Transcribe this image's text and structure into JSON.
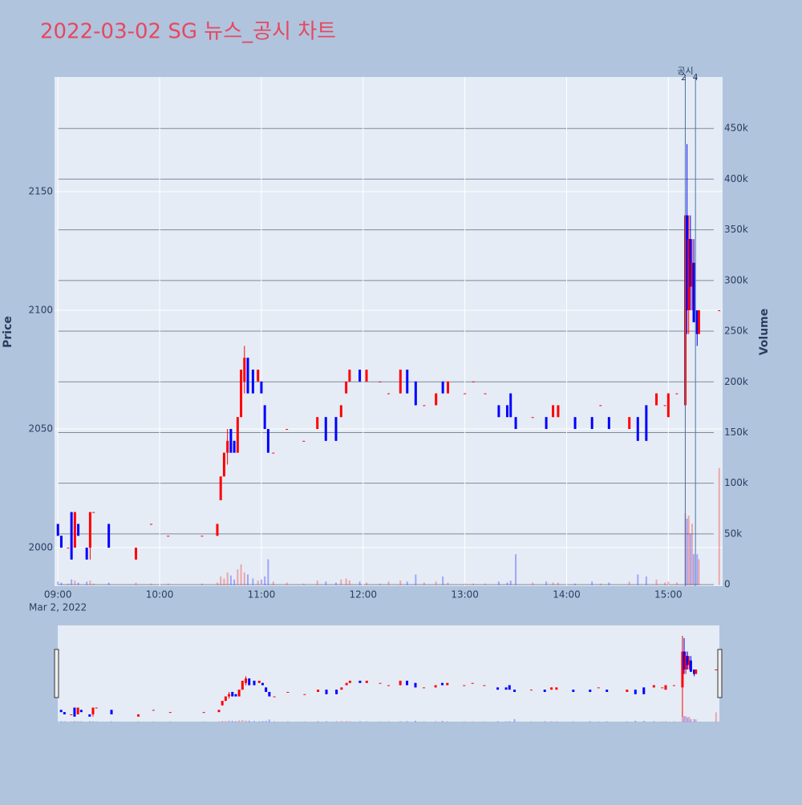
{
  "chart_data": {
    "type": "candlestick",
    "title": "2022-03-02 SG 뉴스_공시 차트",
    "y_label": "Price",
    "y2_label": "Volume",
    "xtick_sublabel": "Mar 2, 2022",
    "up_color": "#ff0000",
    "down_color": "#0000ff",
    "x": [
      "09:00",
      "09:02",
      "09:06",
      "09:08",
      "09:10",
      "09:12",
      "09:17",
      "09:19",
      "09:21",
      "09:30",
      "09:46",
      "09:55",
      "10:05",
      "10:25",
      "10:34",
      "10:36",
      "10:38",
      "10:40",
      "10:42",
      "10:44",
      "10:46",
      "10:48",
      "10:50",
      "10:52",
      "10:55",
      "10:58",
      "11:00",
      "11:02",
      "11:04",
      "11:07",
      "11:15",
      "11:25",
      "11:33",
      "11:38",
      "11:44",
      "11:47",
      "11:50",
      "11:52",
      "11:58",
      "12:02",
      "12:10",
      "12:15",
      "12:22",
      "12:26",
      "12:31",
      "12:36",
      "12:43",
      "12:47",
      "12:50",
      "13:00",
      "13:05",
      "13:12",
      "13:20",
      "13:25",
      "13:27",
      "13:30",
      "13:40",
      "13:48",
      "13:52",
      "13:55",
      "14:05",
      "14:15",
      "14:20",
      "14:25",
      "14:37",
      "14:42",
      "14:47",
      "14:53",
      "14:58",
      "15:00",
      "15:05",
      "15:10",
      "15:11",
      "15:12",
      "15:13",
      "15:14",
      "15:15",
      "15:17",
      "15:18",
      "15:30"
    ],
    "open": [
      2010,
      2005,
      2000,
      2015,
      2000,
      2010,
      2000,
      2000,
      2015,
      2010,
      1995,
      2010,
      2005,
      2005,
      2005,
      2020,
      2030,
      2040,
      2050,
      2045,
      2040,
      2055,
      2070,
      2080,
      2075,
      2070,
      2070,
      2060,
      2050,
      2040,
      2050,
      2045,
      2050,
      2055,
      2055,
      2055,
      2065,
      2070,
      2075,
      2070,
      2070,
      2065,
      2065,
      2075,
      2070,
      2060,
      2060,
      2070,
      2065,
      2065,
      2070,
      2065,
      2060,
      2060,
      2065,
      2055,
      2055,
      2055,
      2055,
      2055,
      2055,
      2055,
      2060,
      2055,
      2050,
      2055,
      2060,
      2060,
      2060,
      2055,
      2065,
      2060,
      2140,
      2100,
      2130,
      2110,
      2120,
      2100,
      2090,
      2100
    ],
    "high": [
      2010,
      2005,
      2000,
      2015,
      2015,
      2010,
      2000,
      2015,
      2015,
      2010,
      2000,
      2010,
      2005,
      2005,
      2010,
      2030,
      2040,
      2050,
      2050,
      2045,
      2055,
      2075,
      2085,
      2080,
      2075,
      2075,
      2070,
      2060,
      2050,
      2040,
      2050,
      2045,
      2055,
      2055,
      2055,
      2060,
      2070,
      2075,
      2075,
      2075,
      2070,
      2065,
      2075,
      2075,
      2070,
      2060,
      2065,
      2070,
      2070,
      2065,
      2070,
      2065,
      2060,
      2060,
      2065,
      2055,
      2055,
      2055,
      2060,
      2060,
      2055,
      2055,
      2060,
      2055,
      2055,
      2055,
      2060,
      2065,
      2060,
      2065,
      2065,
      2175,
      2170,
      2140,
      2140,
      2130,
      2130,
      2100,
      2100,
      2100
    ],
    "low": [
      2005,
      2000,
      2000,
      1995,
      2000,
      2005,
      1995,
      1995,
      2015,
      2000,
      1995,
      2010,
      2005,
      2005,
      2005,
      2020,
      2030,
      2035,
      2040,
      2040,
      2040,
      2055,
      2065,
      2065,
      2065,
      2070,
      2065,
      2050,
      2040,
      2040,
      2050,
      2045,
      2050,
      2045,
      2045,
      2055,
      2065,
      2070,
      2070,
      2070,
      2070,
      2065,
      2065,
      2065,
      2060,
      2060,
      2060,
      2065,
      2065,
      2065,
      2070,
      2065,
      2055,
      2055,
      2055,
      2050,
      2055,
      2050,
      2055,
      2055,
      2050,
      2050,
      2060,
      2050,
      2050,
      2045,
      2045,
      2060,
      2060,
      2055,
      2065,
      1995,
      2090,
      2090,
      2100,
      2100,
      2095,
      2085,
      2090,
      2100
    ],
    "close": [
      2005,
      2000,
      2000,
      1995,
      2015,
      2005,
      1995,
      2015,
      2015,
      2000,
      2000,
      2010,
      2005,
      2005,
      2010,
      2030,
      2040,
      2045,
      2040,
      2040,
      2055,
      2075,
      2080,
      2065,
      2065,
      2075,
      2065,
      2050,
      2040,
      2040,
      2050,
      2045,
      2055,
      2045,
      2045,
      2060,
      2070,
      2075,
      2070,
      2075,
      2070,
      2065,
      2075,
      2065,
      2060,
      2060,
      2065,
      2065,
      2070,
      2065,
      2070,
      2065,
      2055,
      2055,
      2055,
      2050,
      2055,
      2050,
      2060,
      2060,
      2050,
      2050,
      2060,
      2050,
      2055,
      2045,
      2045,
      2065,
      2060,
      2065,
      2065,
      2140,
      2100,
      2130,
      2110,
      2120,
      2095,
      2090,
      2100,
      2100
    ],
    "volume": [
      3000,
      2000,
      1000,
      5000,
      4000,
      2000,
      3000,
      4000,
      1000,
      2000,
      2000,
      1000,
      1000,
      1000,
      2000,
      8000,
      6000,
      12000,
      9000,
      5000,
      15000,
      20000,
      12000,
      10000,
      6000,
      4000,
      5000,
      8000,
      25000,
      3000,
      2000,
      1000,
      4000,
      3000,
      2000,
      5000,
      6000,
      4000,
      3000,
      2000,
      1000,
      3000,
      4000,
      3000,
      10000,
      2000,
      3000,
      8000,
      2000,
      1000,
      1000,
      1000,
      3000,
      2000,
      4000,
      30000,
      2000,
      3000,
      2000,
      2000,
      1000,
      3000,
      1000,
      2000,
      3000,
      10000,
      8000,
      5000,
      2000,
      3000,
      2000,
      70000,
      65000,
      68000,
      50000,
      60000,
      30000,
      30000,
      25000,
      115000
    ],
    "xlim": [
      "08:58",
      "15:32"
    ],
    "xticks": [
      "09:00",
      "10:00",
      "11:00",
      "12:00",
      "13:00",
      "14:00",
      "15:00"
    ],
    "ylim": [
      1983.8,
      2198.3
    ],
    "yticks": [
      2000,
      2050,
      2100,
      2150
    ],
    "y2lim": [
      -1500,
      500800
    ],
    "y2ticks": [
      0,
      {
        "value": 50000,
        "label": "50k"
      },
      {
        "value": 100000,
        "label": "100k"
      },
      {
        "value": 150000,
        "label": "150k"
      },
      {
        "value": 200000,
        "label": "200k"
      },
      {
        "value": 250000,
        "label": "250k"
      },
      {
        "value": 300000,
        "label": "300k"
      },
      {
        "value": 350000,
        "label": "350k"
      },
      {
        "value": 400000,
        "label": "400k"
      },
      {
        "value": 450000,
        "label": "450k"
      }
    ],
    "annotations": [
      {
        "x": "15:10",
        "text": "공시"
      },
      {
        "x": "15:10",
        "text": "2"
      },
      {
        "x": "15:16",
        "text": "4"
      }
    ]
  }
}
